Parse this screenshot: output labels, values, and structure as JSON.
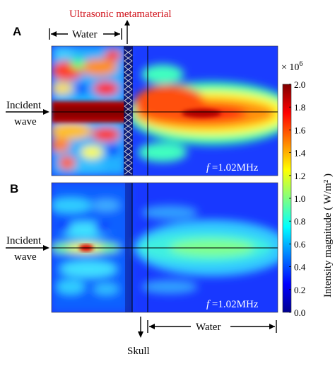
{
  "figure": {
    "metamaterial_label": "Ultrasonic metamaterial",
    "panel_a": {
      "letter": "A",
      "water_label": "Water",
      "incident_line1": "Incident",
      "incident_line2": "wave",
      "freq_var": "f",
      "freq_value": " =1.02MHz"
    },
    "panel_b": {
      "letter": "B",
      "incident_line1": "Incident",
      "incident_line2": "wave",
      "freq_var": "f",
      "freq_value": " =1.02MHz"
    },
    "skull_label": "Skull",
    "water_bottom_label": "Water",
    "colorbar": {
      "multiplier": "× 10",
      "exponent": "6",
      "axis_label": "Intensity magnitude ( W/m² )",
      "ticks": [
        "2.0",
        "1.8",
        "1.6",
        "1.4",
        "1.2",
        "1.0",
        "0.8",
        "0.6",
        "0.4",
        "0.2",
        "0.0"
      ],
      "min": 0.0,
      "max": 2.0,
      "colormap": [
        "#00008f",
        "#0000ff",
        "#0080ff",
        "#00ffff",
        "#80ff80",
        "#ffff00",
        "#ff8000",
        "#ff0000",
        "#800000"
      ]
    }
  }
}
